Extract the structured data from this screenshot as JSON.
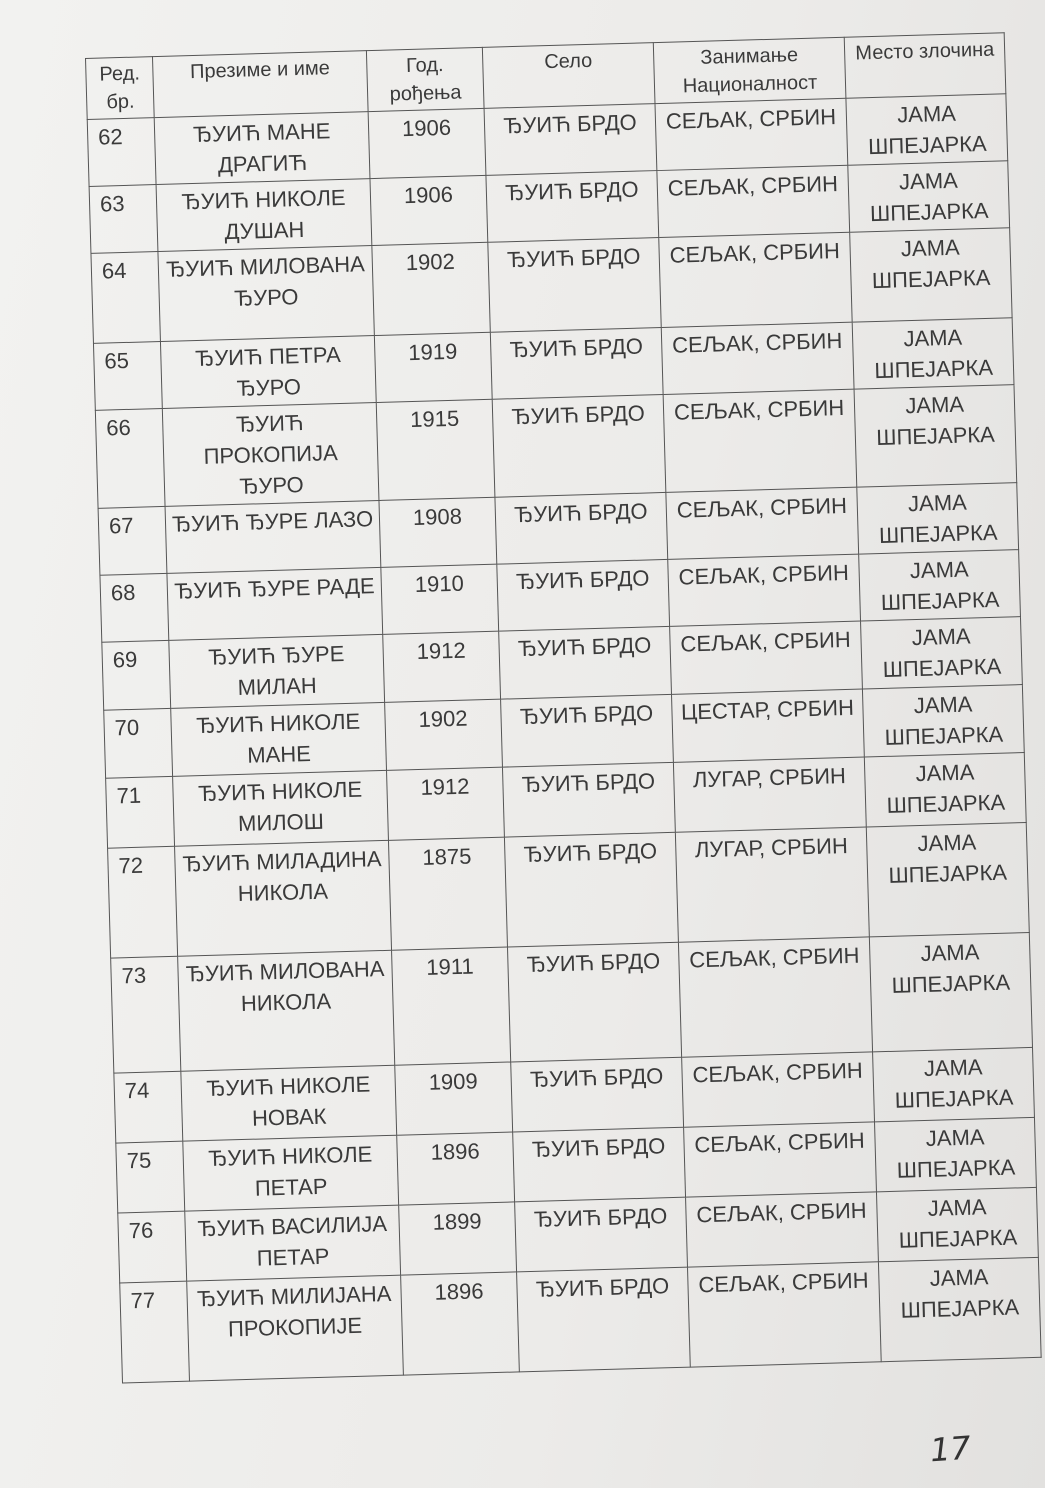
{
  "table": {
    "headers": [
      "Ред. бр.",
      "Презиме и име",
      "Год. рођења",
      "Село",
      "Занимање Националност",
      "Место злочина"
    ],
    "rows": [
      {
        "no": "62",
        "name": "ЂУИЋ МАНЕ ДРАГИЋ",
        "year": "1906",
        "village": "ЂУИЋ БРДО",
        "occupation": "СЕЉАК, СРБИН",
        "place": "ЈАМА ШПЕЈАРКА"
      },
      {
        "no": "63",
        "name": "ЂУИЋ НИКОЛЕ ДУШАН",
        "year": "1906",
        "village": "ЂУИЋ БРДО",
        "occupation": "СЕЉАК, СРБИН",
        "place": "ЈАМА ШПЕЈАРКА"
      },
      {
        "no": "64",
        "name": "ЂУИЋ МИЛОВАНА ЂУРО",
        "year": "1902",
        "village": "ЂУИЋ БРДО",
        "occupation": "СЕЉАК, СРБИН",
        "place": "ЈАМА ШПЕЈАРКА"
      },
      {
        "no": "65",
        "name": "ЂУИЋ ПЕТРА ЂУРО",
        "year": "1919",
        "village": "ЂУИЋ БРДО",
        "occupation": "СЕЉАК, СРБИН",
        "place": "ЈАМА ШПЕЈАРКА"
      },
      {
        "no": "66",
        "name": "ЂУИЋ ПРОКОПИЈА ЂУРО",
        "year": "1915",
        "village": "ЂУИЋ БРДО",
        "occupation": "СЕЉАК, СРБИН",
        "place": "ЈАМА ШПЕЈАРКА"
      },
      {
        "no": "67",
        "name": "ЂУИЋ ЂУРЕ ЛАЗО",
        "year": "1908",
        "village": "ЂУИЋ БРДО",
        "occupation": "СЕЉАК, СРБИН",
        "place": "ЈАМА ШПЕЈАРКА"
      },
      {
        "no": "68",
        "name": "ЂУИЋ ЂУРЕ РАДЕ",
        "year": "1910",
        "village": "ЂУИЋ БРДО",
        "occupation": "СЕЉАК, СРБИН",
        "place": "ЈАМА ШПЕЈАРКА"
      },
      {
        "no": "69",
        "name": "ЂУИЋ ЂУРЕ МИЛАН",
        "year": "1912",
        "village": "ЂУИЋ БРДО",
        "occupation": "СЕЉАК, СРБИН",
        "place": "ЈАМА ШПЕЈАРКА"
      },
      {
        "no": "70",
        "name": "ЂУИЋ НИКОЛЕ МАНЕ",
        "year": "1902",
        "village": "ЂУИЋ БРДО",
        "occupation": "ЦЕСТАР, СРБИН",
        "place": "ЈАМА ШПЕЈАРКА"
      },
      {
        "no": "71",
        "name": "ЂУИЋ НИКОЛЕ МИЛОШ",
        "year": "1912",
        "village": "ЂУИЋ БРДО",
        "occupation": "ЛУГАР, СРБИН",
        "place": "ЈАМА ШПЕЈАРКА"
      },
      {
        "no": "72",
        "name": "ЂУИЋ МИЛАДИНА НИКОЛА",
        "year": "1875",
        "village": "ЂУИЋ БРДО",
        "occupation": "ЛУГАР, СРБИН",
        "place": "ЈАМА ШПЕЈАРКА"
      },
      {
        "no": "73",
        "name": "ЂУИЋ МИЛОВАНА НИКОЛА",
        "year": "1911",
        "village": "ЂУИЋ БРДО",
        "occupation": "СЕЉАК, СРБИН",
        "place": "ЈАМА ШПЕЈАРКА"
      },
      {
        "no": "74",
        "name": "ЂУИЋ НИКОЛЕ НОВАК",
        "year": "1909",
        "village": "ЂУИЋ БРДО",
        "occupation": "СЕЉАК, СРБИН",
        "place": "ЈАМА ШПЕЈАРКА"
      },
      {
        "no": "75",
        "name": "ЂУИЋ НИКОЛЕ ПЕТАР",
        "year": "1896",
        "village": "ЂУИЋ БРДО",
        "occupation": "СЕЉАК, СРБИН",
        "place": "ЈАМА ШПЕЈАРКА"
      },
      {
        "no": "76",
        "name": "ЂУИЋ ВАСИЛИЈА ПЕТАР",
        "year": "1899",
        "village": "ЂУИЋ БРДО",
        "occupation": "СЕЉАК, СРБИН",
        "place": "ЈАМА ШПЕЈАРКА"
      },
      {
        "no": "77",
        "name": "ЂУИЋ МИЛИЈАНА ПРОКОПИЈЕ",
        "year": "1896",
        "village": "ЂУИЋ БРДО",
        "occupation": "СЕЉАК, СРБИН",
        "place": "ЈАМА ШПЕЈАРКА"
      }
    ]
  },
  "page_number": "17"
}
